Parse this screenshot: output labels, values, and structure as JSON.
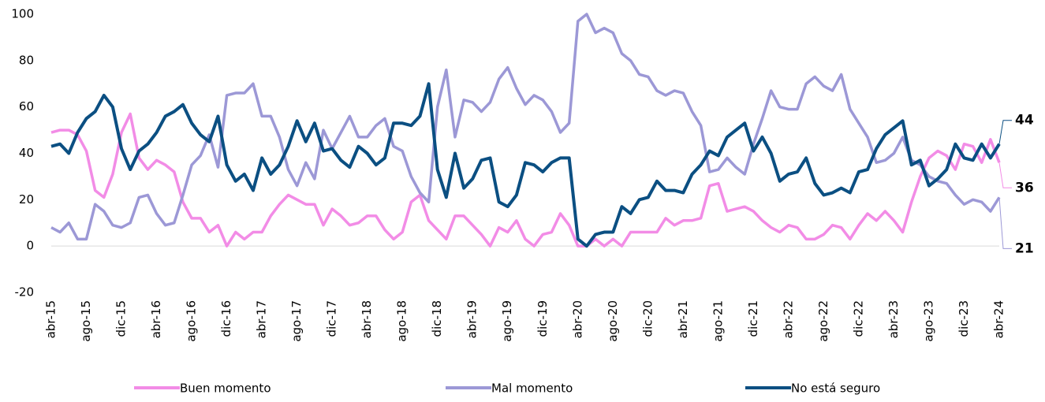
{
  "chart_data": {
    "type": "line",
    "categories": [
      "abr-15",
      null,
      null,
      null,
      "ago-15",
      null,
      null,
      null,
      "dic-15",
      null,
      null,
      null,
      "abr-16",
      null,
      null,
      null,
      "ago-16",
      null,
      null,
      null,
      "dic-16",
      null,
      null,
      null,
      "abr-17",
      null,
      null,
      null,
      "ago-17",
      null,
      null,
      null,
      "dic-17",
      null,
      null,
      null,
      "abr-18",
      null,
      null,
      null,
      "ago-18",
      null,
      null,
      null,
      "dic-18",
      null,
      null,
      null,
      "abr-19",
      null,
      null,
      null,
      "ago-19",
      null,
      null,
      null,
      "dic-19",
      null,
      null,
      null,
      "abr-20",
      null,
      null,
      null,
      "ago-20",
      null,
      null,
      null,
      "dic-20",
      null,
      null,
      null,
      "abr-21",
      null,
      null,
      null,
      "ago-21",
      null,
      null,
      null,
      "dic-21",
      null,
      null,
      null,
      "abr-22",
      null,
      null,
      null,
      "ago-22",
      null,
      null,
      null,
      "dic-22",
      null,
      null,
      null,
      "abr-23",
      null,
      null,
      null,
      "ago-23",
      null,
      null,
      null,
      "dic-23",
      null,
      null,
      null,
      "abr-24"
    ],
    "series": [
      {
        "name": "Buen momento",
        "color": "#f28ce6",
        "values": [
          49,
          50,
          50,
          48,
          41,
          24,
          21,
          31,
          49,
          57,
          38,
          33,
          37,
          35,
          32,
          19,
          12,
          12,
          6,
          9,
          0,
          6,
          3,
          6,
          6,
          13,
          18,
          22,
          20,
          18,
          18,
          9,
          16,
          13,
          9,
          10,
          13,
          13,
          7,
          3,
          6,
          19,
          22,
          11,
          7,
          3,
          13,
          13,
          9,
          5,
          0,
          8,
          6,
          11,
          3,
          0,
          5,
          6,
          14,
          9,
          0,
          0,
          3,
          0,
          3,
          0,
          6,
          6,
          6,
          6,
          12,
          9,
          11,
          11,
          12,
          26,
          27,
          15,
          16,
          17,
          15,
          11,
          8,
          6,
          9,
          8,
          3,
          3,
          5,
          9,
          8,
          3,
          9,
          14,
          11,
          15,
          11,
          6,
          19,
          30,
          38,
          41,
          39,
          33,
          44,
          43,
          36,
          46,
          36
        ]
      },
      {
        "name": "Mal momento",
        "color": "#9c98d6",
        "values": [
          8,
          6,
          10,
          3,
          3,
          18,
          15,
          9,
          8,
          10,
          21,
          22,
          14,
          9,
          10,
          22,
          35,
          39,
          48,
          34,
          65,
          66,
          66,
          70,
          56,
          56,
          47,
          33,
          26,
          36,
          29,
          50,
          42,
          49,
          56,
          47,
          47,
          52,
          55,
          43,
          41,
          30,
          23,
          19,
          60,
          76,
          47,
          63,
          62,
          58,
          62,
          72,
          77,
          68,
          61,
          65,
          63,
          58,
          49,
          53,
          97,
          100,
          92,
          94,
          92,
          83,
          80,
          74,
          73,
          67,
          65,
          67,
          66,
          58,
          52,
          32,
          33,
          38,
          34,
          31,
          44,
          55,
          67,
          60,
          59,
          59,
          70,
          73,
          69,
          67,
          74,
          59,
          53,
          47,
          36,
          37,
          40,
          47,
          37,
          35,
          30,
          28,
          27,
          22,
          18,
          20,
          19,
          15,
          21
        ]
      },
      {
        "name": "No está seguro",
        "color": "#0b4f82",
        "values": [
          43,
          44,
          40,
          49,
          55,
          58,
          65,
          60,
          42,
          33,
          41,
          44,
          49,
          56,
          58,
          61,
          53,
          48,
          45,
          56,
          35,
          28,
          31,
          24,
          38,
          31,
          35,
          43,
          54,
          45,
          53,
          41,
          42,
          37,
          34,
          43,
          40,
          35,
          38,
          53,
          53,
          52,
          56,
          70,
          33,
          21,
          40,
          25,
          29,
          37,
          38,
          19,
          17,
          22,
          36,
          35,
          32,
          36,
          38,
          38,
          3,
          0,
          5,
          6,
          6,
          17,
          14,
          20,
          21,
          28,
          24,
          24,
          23,
          31,
          35,
          41,
          39,
          47,
          50,
          53,
          41,
          47,
          40,
          28,
          31,
          32,
          38,
          27,
          22,
          23,
          25,
          23,
          32,
          33,
          42,
          48,
          51,
          54,
          35,
          37,
          26,
          29,
          33,
          44,
          38,
          37,
          44,
          38,
          44
        ]
      }
    ],
    "ylim": [
      -20,
      100
    ],
    "yticks": [
      -20,
      0,
      20,
      40,
      60,
      80,
      100
    ]
  }
}
